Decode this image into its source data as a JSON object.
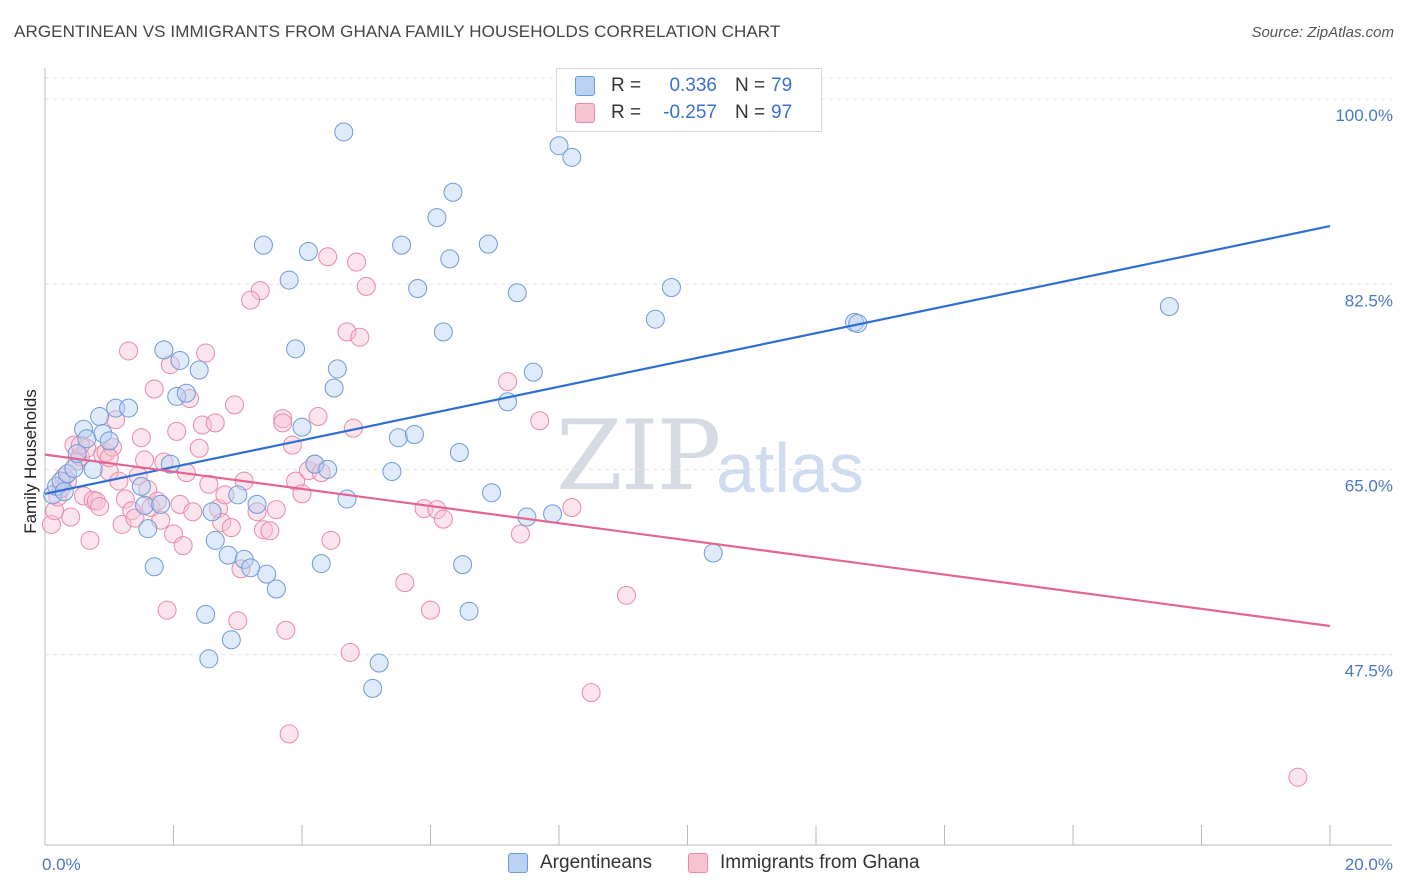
{
  "title": "ARGENTINEAN VS IMMIGRANTS FROM GHANA FAMILY HOUSEHOLDS CORRELATION CHART",
  "source": "Source: ZipAtlas.com",
  "watermark": {
    "zip": "ZIP",
    "atlas": "atlas"
  },
  "legend_top": {
    "rows": [
      {
        "r_label": "R =",
        "r_value": "0.336",
        "n_label": "N =",
        "n_value": "79"
      },
      {
        "r_label": "R =",
        "r_value": "-0.257",
        "n_label": "N =",
        "n_value": "97"
      }
    ]
  },
  "legend_bottom": {
    "items": [
      "Argentineans",
      "Immigrants from Ghana"
    ]
  },
  "colors": {
    "blue_fill": "#b9d1f3",
    "blue_stroke": "#6f9ad9",
    "blue_line": "#2f6fd1",
    "pink_fill": "#f7c3d3",
    "pink_stroke": "#e98aa8",
    "pink_line": "#e26592",
    "grid": "#e3e3e3",
    "tick_text": "#4a78c8"
  },
  "chart_data": {
    "type": "scatter",
    "title": "ARGENTINEAN VS IMMIGRANTS FROM GHANA FAMILY HOUSEHOLDS CORRELATION CHART",
    "xlabel": "",
    "ylabel": "Family Households",
    "xlim": [
      0,
      20
    ],
    "ylim": [
      29.5,
      102
    ],
    "x_tick_labels": [
      "0.0%",
      "20.0%"
    ],
    "y_ticks": [
      47.5,
      65.0,
      82.5,
      100.0
    ],
    "y_tick_labels": [
      "47.5%",
      "65.0%",
      "82.5%",
      "100.0%"
    ],
    "grid": "horizontal dashed",
    "legend_position": "top-center and bottom",
    "series": [
      {
        "name": "Argentineans",
        "r": 0.336,
        "n": 79,
        "trend": [
          [
            0,
            62.7
          ],
          [
            20,
            88.0
          ]
        ],
        "points": [
          [
            0.12,
            62.6
          ],
          [
            0.18,
            63.4
          ],
          [
            0.25,
            63.9
          ],
          [
            0.3,
            62.9
          ],
          [
            0.35,
            64.6
          ],
          [
            0.45,
            65.1
          ],
          [
            0.5,
            66.5
          ],
          [
            0.6,
            68.8
          ],
          [
            0.65,
            67.9
          ],
          [
            0.75,
            65.0
          ],
          [
            0.85,
            70.0
          ],
          [
            0.9,
            68.4
          ],
          [
            1.0,
            67.7
          ],
          [
            1.1,
            70.8
          ],
          [
            1.3,
            70.8
          ],
          [
            1.5,
            63.4
          ],
          [
            1.55,
            61.6
          ],
          [
            1.6,
            59.4
          ],
          [
            1.7,
            55.8
          ],
          [
            1.8,
            61.7
          ],
          [
            1.85,
            76.3
          ],
          [
            1.95,
            65.5
          ],
          [
            2.05,
            71.9
          ],
          [
            2.1,
            75.3
          ],
          [
            2.2,
            72.2
          ],
          [
            2.4,
            74.4
          ],
          [
            2.5,
            51.3
          ],
          [
            2.55,
            47.1
          ],
          [
            2.6,
            61.0
          ],
          [
            2.65,
            58.3
          ],
          [
            2.85,
            56.9
          ],
          [
            2.9,
            48.9
          ],
          [
            3.0,
            62.6
          ],
          [
            3.1,
            56.5
          ],
          [
            3.2,
            55.7
          ],
          [
            3.3,
            61.7
          ],
          [
            3.4,
            86.2
          ],
          [
            3.45,
            55.1
          ],
          [
            3.6,
            53.7
          ],
          [
            3.8,
            82.9
          ],
          [
            3.9,
            76.4
          ],
          [
            4.0,
            69.0
          ],
          [
            4.1,
            85.6
          ],
          [
            4.2,
            65.5
          ],
          [
            4.3,
            56.1
          ],
          [
            4.4,
            65.0
          ],
          [
            4.5,
            72.7
          ],
          [
            4.55,
            74.5
          ],
          [
            4.65,
            96.9
          ],
          [
            4.7,
            62.2
          ],
          [
            5.1,
            44.3
          ],
          [
            5.2,
            46.7
          ],
          [
            5.4,
            64.8
          ],
          [
            5.5,
            68.0
          ],
          [
            5.55,
            86.2
          ],
          [
            5.75,
            68.3
          ],
          [
            5.8,
            82.1
          ],
          [
            6.1,
            88.8
          ],
          [
            6.2,
            78.0
          ],
          [
            6.3,
            84.9
          ],
          [
            6.35,
            91.2
          ],
          [
            6.45,
            66.6
          ],
          [
            6.5,
            56.0
          ],
          [
            6.6,
            51.6
          ],
          [
            6.9,
            86.3
          ],
          [
            6.95,
            62.8
          ],
          [
            7.2,
            71.4
          ],
          [
            7.35,
            81.7
          ],
          [
            7.5,
            60.5
          ],
          [
            7.6,
            74.2
          ],
          [
            7.9,
            60.8
          ],
          [
            8.0,
            95.6
          ],
          [
            8.2,
            94.5
          ],
          [
            9.5,
            79.2
          ],
          [
            9.75,
            82.2
          ],
          [
            10.4,
            57.1
          ],
          [
            12.6,
            78.9
          ],
          [
            12.65,
            78.8
          ],
          [
            17.5,
            80.4
          ]
        ]
      },
      {
        "name": "Immigrants from Ghana",
        "r": -0.257,
        "n": 97,
        "trend": [
          [
            0,
            66.4
          ],
          [
            20,
            50.2
          ]
        ],
        "points": [
          [
            0.1,
            59.8
          ],
          [
            0.15,
            61.1
          ],
          [
            0.2,
            62.4
          ],
          [
            0.25,
            63.2
          ],
          [
            0.3,
            64.3
          ],
          [
            0.35,
            63.9
          ],
          [
            0.4,
            60.5
          ],
          [
            0.45,
            67.3
          ],
          [
            0.5,
            65.8
          ],
          [
            0.55,
            66.2
          ],
          [
            0.6,
            62.5
          ],
          [
            0.65,
            67.0
          ],
          [
            0.7,
            58.3
          ],
          [
            0.75,
            62.1
          ],
          [
            0.8,
            62.0
          ],
          [
            0.85,
            61.5
          ],
          [
            0.9,
            66.4
          ],
          [
            0.95,
            66.6
          ],
          [
            1.0,
            64.8
          ],
          [
            1.05,
            67.1
          ],
          [
            1.1,
            69.7
          ],
          [
            1.15,
            63.9
          ],
          [
            1.2,
            59.8
          ],
          [
            1.25,
            62.2
          ],
          [
            1.3,
            76.2
          ],
          [
            1.35,
            61.1
          ],
          [
            1.4,
            60.4
          ],
          [
            1.45,
            64.4
          ],
          [
            1.5,
            68.0
          ],
          [
            1.55,
            65.9
          ],
          [
            1.6,
            63.1
          ],
          [
            1.65,
            61.4
          ],
          [
            1.7,
            72.6
          ],
          [
            1.75,
            62.0
          ],
          [
            1.8,
            60.2
          ],
          [
            1.85,
            65.7
          ],
          [
            1.9,
            51.7
          ],
          [
            1.95,
            74.9
          ],
          [
            2.0,
            58.9
          ],
          [
            2.05,
            68.6
          ],
          [
            2.1,
            61.7
          ],
          [
            2.15,
            57.8
          ],
          [
            2.2,
            64.7
          ],
          [
            2.25,
            71.7
          ],
          [
            2.3,
            61.0
          ],
          [
            2.4,
            67.0
          ],
          [
            2.45,
            69.2
          ],
          [
            2.5,
            76.0
          ],
          [
            2.55,
            63.6
          ],
          [
            2.65,
            69.4
          ],
          [
            2.7,
            61.3
          ],
          [
            2.75,
            60.0
          ],
          [
            2.8,
            62.6
          ],
          [
            2.9,
            59.5
          ],
          [
            2.95,
            71.1
          ],
          [
            3.0,
            50.7
          ],
          [
            3.05,
            55.6
          ],
          [
            3.1,
            63.9
          ],
          [
            3.3,
            61.0
          ],
          [
            3.35,
            81.9
          ],
          [
            3.4,
            59.3
          ],
          [
            3.5,
            59.2
          ],
          [
            3.6,
            61.2
          ],
          [
            3.7,
            69.8
          ],
          [
            3.75,
            49.8
          ],
          [
            3.8,
            40.0
          ],
          [
            3.85,
            67.3
          ],
          [
            3.9,
            63.9
          ],
          [
            4.0,
            62.7
          ],
          [
            4.1,
            64.9
          ],
          [
            4.2,
            65.5
          ],
          [
            4.25,
            70.0
          ],
          [
            4.3,
            64.7
          ],
          [
            4.4,
            85.1
          ],
          [
            4.45,
            58.3
          ],
          [
            4.7,
            78.0
          ],
          [
            4.75,
            47.7
          ],
          [
            4.8,
            68.9
          ],
          [
            4.85,
            84.6
          ],
          [
            4.9,
            77.5
          ],
          [
            5.0,
            82.3
          ],
          [
            5.6,
            54.3
          ],
          [
            5.9,
            61.3
          ],
          [
            6.0,
            51.7
          ],
          [
            6.1,
            61.2
          ],
          [
            6.2,
            60.3
          ],
          [
            7.2,
            73.3
          ],
          [
            7.4,
            58.9
          ],
          [
            7.7,
            69.6
          ],
          [
            8.2,
            61.4
          ],
          [
            8.5,
            43.9
          ],
          [
            9.05,
            53.1
          ],
          [
            3.7,
            69.4
          ],
          [
            3.2,
            81.0
          ],
          [
            1.0,
            66.1
          ],
          [
            0.55,
            67.3
          ],
          [
            19.5,
            35.9
          ]
        ]
      }
    ]
  }
}
